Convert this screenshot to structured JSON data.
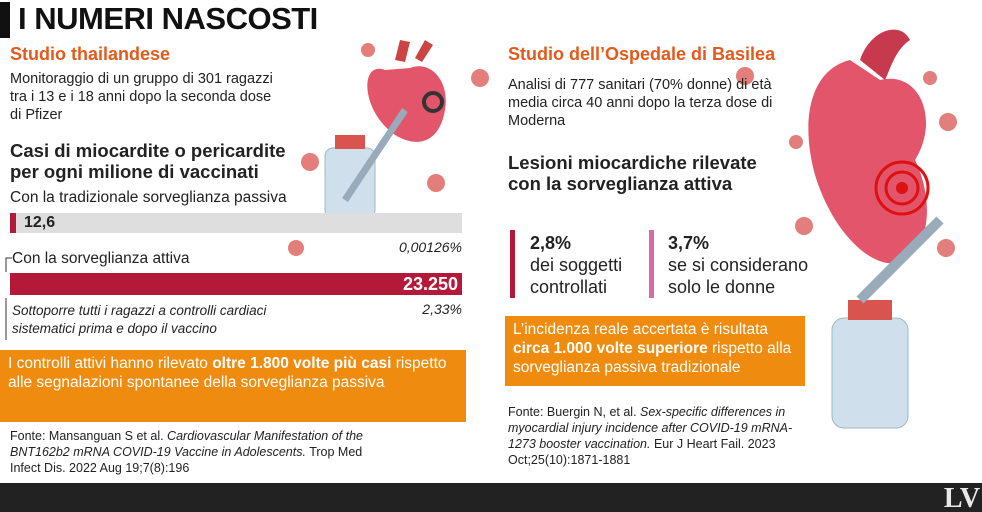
{
  "header": {
    "title": "I NUMERI NASCOSTI"
  },
  "left": {
    "heading": "Studio thailandese",
    "intro": "Monitoraggio di un gruppo di 301 ragazzi tra i 13 e i 18 anni dopo la seconda dose di Pfizer",
    "chart_title": "Casi di miocardite o pericardite per ogni milione di vaccinati",
    "bars": [
      {
        "label": "Con la tradizionale sorveglianza passiva",
        "value": 12.6,
        "value_label": "12,6",
        "percent": "0,00126%"
      },
      {
        "label": "Con la sorveglianza attiva",
        "value": 23250,
        "value_label": "23.250",
        "percent": "2,33%"
      }
    ],
    "note": "Sottoporre tutti i ragazzi a controlli cardiaci sistematici prima e dopo il vaccino",
    "highlight": [
      "I controlli attivi hanno rilevato ",
      "oltre 1.800 volte più casi",
      " rispetto alle segnalazioni spontanee della sorveglianza passiva"
    ],
    "source": [
      "Fonte: Mansanguan S et al. ",
      "Cardiovascular Manifestation of the BNT162b2 mRNA COVID-19 Vaccine in Adolescents.",
      " Trop Med Infect Dis. 2022 Aug 19;7(8):196"
    ]
  },
  "right": {
    "heading": "Studio dell’Ospedale di Basilea",
    "intro": "Analisi di 777 sanitari (70% donne) di età media circa 40 anni dopo la terza dose di Moderna",
    "chart_title": "Lesioni miocardiche rilevate con la sorveglianza attiva",
    "stats": [
      {
        "value": "2,8%",
        "text": "dei soggetti controllati"
      },
      {
        "value": "3,7%",
        "text": "se si considerano solo le donne"
      }
    ],
    "highlight": [
      "L’incidenza reale accertata è risultata ",
      "circa 1.000 volte superiore",
      " rispetto alla sorveglianza passiva tradizionale"
    ],
    "source": [
      "Fonte: Buergin N, et al. ",
      "Sex-specific differences in myocardial injury incidence after COVID-19 mRNA-1273 booster vaccination.",
      " Eur J Heart Fail. 2023 Oct;25(10):1871-1881"
    ]
  },
  "footer": {
    "logo": "LV"
  }
}
